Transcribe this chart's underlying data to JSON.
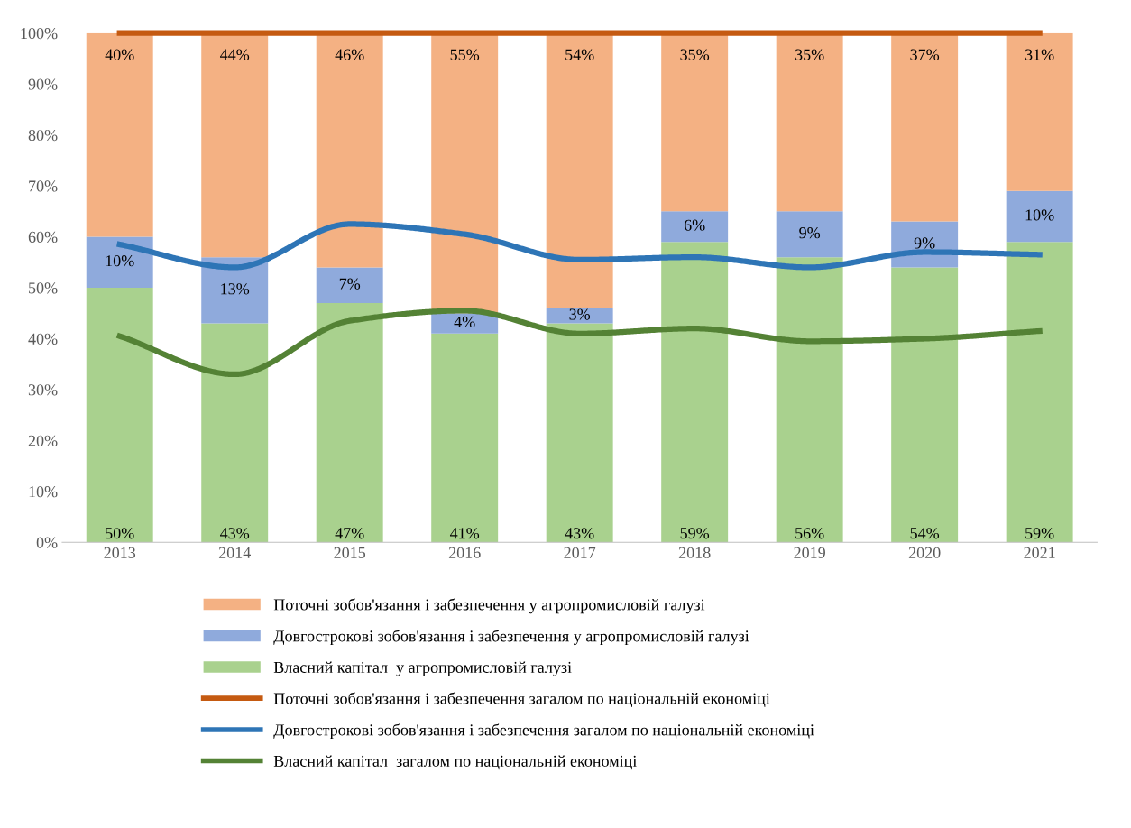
{
  "chart_data": {
    "type": "bar",
    "stacked": true,
    "categories": [
      "2013",
      "2014",
      "2015",
      "2016",
      "2017",
      "2018",
      "2019",
      "2020",
      "2021"
    ],
    "ylim": [
      0,
      100
    ],
    "yticks": [
      {
        "value": 0,
        "label": "0%"
      },
      {
        "value": 10,
        "label": "10%"
      },
      {
        "value": 20,
        "label": "20%"
      },
      {
        "value": 30,
        "label": "30%"
      },
      {
        "value": 40,
        "label": "40%"
      },
      {
        "value": 50,
        "label": "50%"
      },
      {
        "value": 60,
        "label": "60%"
      },
      {
        "value": 70,
        "label": "70%"
      },
      {
        "value": 80,
        "label": "80%"
      },
      {
        "value": 90,
        "label": "90%"
      },
      {
        "value": 100,
        "label": "100%"
      }
    ],
    "grid": false,
    "legend": "bottom",
    "series": [
      {
        "name": "Власний капітал  у агропромисловій галузі",
        "color": "#a9d18e",
        "values": [
          50,
          43,
          47,
          41,
          43,
          59,
          56,
          54,
          59
        ],
        "value_labels": [
          "50%",
          "43%",
          "47%",
          "41%",
          "43%",
          "59%",
          "56%",
          "54%",
          "59%"
        ]
      },
      {
        "name": "Довгострокові зобов'язання і забезпечення у агропромисловій галузі",
        "color": "#8faadc",
        "values": [
          10,
          13,
          7,
          4,
          3,
          6,
          9,
          9,
          10
        ],
        "value_labels": [
          "10%",
          "13%",
          "7%",
          "4%",
          "3%",
          "6%",
          "9%",
          "9%",
          "10%"
        ]
      },
      {
        "name": "Поточні зобов'язання і забезпечення у агропромисловій галузі",
        "color": "#f4b183",
        "values": [
          40,
          44,
          46,
          55,
          54,
          35,
          35,
          37,
          31
        ],
        "value_labels": [
          "40%",
          "44%",
          "46%",
          "55%",
          "54%",
          "35%",
          "35%",
          "37%",
          "31%"
        ]
      },
      {
        "name": "Поточні зобов'язання і забезпечення загалом по національній економіці",
        "type": "line",
        "color": "#c55a11",
        "values": [
          100,
          100,
          100,
          100,
          100,
          100,
          100,
          100,
          100
        ]
      },
      {
        "name": "Довгострокові зобов'язання і забезпечення загалом по національній економіці",
        "type": "line",
        "color": "#2e75b6",
        "values": [
          58.5,
          54,
          62.5,
          60.5,
          55.5,
          56,
          54,
          57,
          56.5
        ]
      },
      {
        "name": "Власний капітал  загалом по національній економіці",
        "type": "line",
        "color": "#548235",
        "values": [
          40.5,
          33,
          43.5,
          45.5,
          41,
          42,
          39.5,
          40,
          41.5
        ]
      }
    ]
  }
}
